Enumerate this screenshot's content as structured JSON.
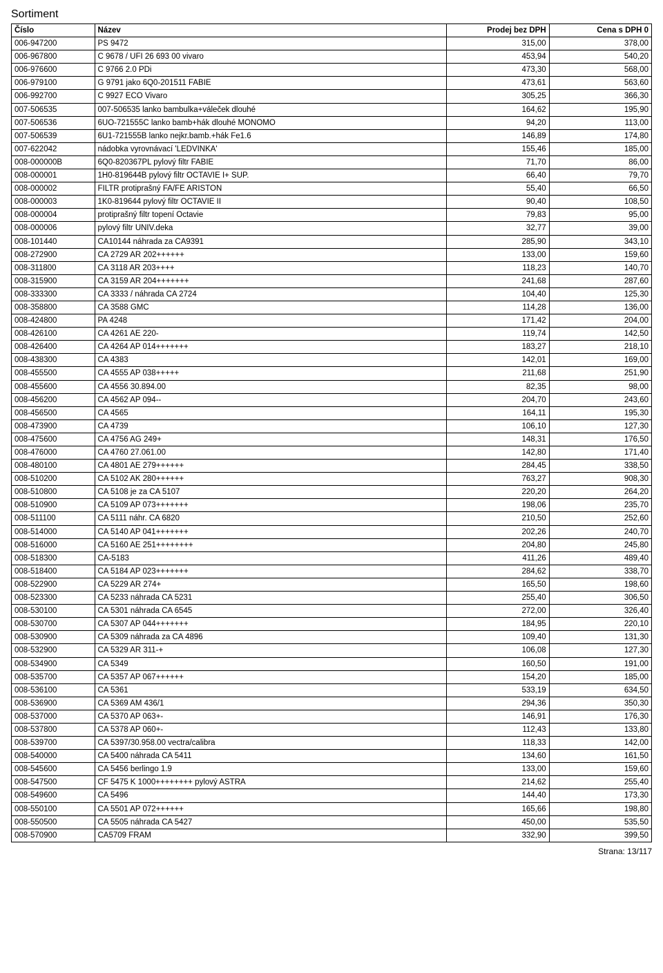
{
  "title": "Sortiment",
  "columns": [
    "Číslo",
    "Název",
    "Prodej bez DPH",
    "Cena s DPH 0"
  ],
  "footer": "Strana: 13/117",
  "rows": [
    [
      "006-947200",
      "PS 9472",
      "315,00",
      "378,00"
    ],
    [
      "006-967800",
      "C 9678 / UFI 26 693 00 vivaro",
      "453,94",
      "540,20"
    ],
    [
      "006-976600",
      "C 9766 2.0 PDi",
      "473,30",
      "568,00"
    ],
    [
      "006-979100",
      "G 9791 jako 6Q0-201511 FABIE",
      "473,61",
      "563,60"
    ],
    [
      "006-992700",
      "C 9927 ECO Vivaro",
      "305,25",
      "366,30"
    ],
    [
      "007-506535",
      "007-506535 lanko bambulka+váleček dlouhé",
      "164,62",
      "195,90"
    ],
    [
      "007-506536",
      "6UO-721555C lanko bamb+hák dlouhé MONOMO",
      "94,20",
      "113,00"
    ],
    [
      "007-506539",
      "6U1-721555B lanko nejkr.bamb.+hák Fe1.6",
      "146,89",
      "174,80"
    ],
    [
      "007-622042",
      "nádobka vyrovnávací  'LEDVINKA'",
      "155,46",
      "185,00"
    ],
    [
      "008-000000B",
      "6Q0-820367PL pylový filtr FABIE",
      "71,70",
      "86,00"
    ],
    [
      "008-000001",
      "1H0-819644B pylový filtr OCTAVIE I+ SUP.",
      "66,40",
      "79,70"
    ],
    [
      "008-000002",
      "FILTR protiprašný FA/FE ARISTON",
      "55,40",
      "66,50"
    ],
    [
      "008-000003",
      "1K0-819644 pylový filtr OCTAVIE II",
      "90,40",
      "108,50"
    ],
    [
      "008-000004",
      "protiprašný filtr topení Octavie",
      "79,83",
      "95,00"
    ],
    [
      "008-000006",
      "pylový filtr UNIV.deka",
      "32,77",
      "39,00"
    ],
    [
      "008-101440",
      "CA10144 náhrada za CA9391",
      "285,90",
      "343,10"
    ],
    [
      "008-272900",
      "CA 2729   AR 202++++++",
      "133,00",
      "159,60"
    ],
    [
      "008-311800",
      "CA 3118   AR 203++++",
      "118,23",
      "140,70"
    ],
    [
      "008-315900",
      "CA 3159   AR 204+++++++",
      "241,68",
      "287,60"
    ],
    [
      "008-333300",
      "CA 3333   / náhrada CA 2724",
      "104,40",
      "125,30"
    ],
    [
      "008-358800",
      "CA 3588     GMC",
      "114,28",
      "136,00"
    ],
    [
      "008-424800",
      "PA 4248",
      "171,42",
      "204,00"
    ],
    [
      "008-426100",
      "CA 4261   AE 220-",
      "119,74",
      "142,50"
    ],
    [
      "008-426400",
      "CA 4264   AP 014+++++++",
      "183,27",
      "218,10"
    ],
    [
      "008-438300",
      "CA 4383",
      "142,01",
      "169,00"
    ],
    [
      "008-455500",
      "CA 4555   AP 038+++++",
      "211,68",
      "251,90"
    ],
    [
      "008-455600",
      "CA 4556   30.894.00",
      "82,35",
      "98,00"
    ],
    [
      "008-456200",
      "CA 4562   AP 094--",
      "204,70",
      "243,60"
    ],
    [
      "008-456500",
      "CA 4565",
      "164,11",
      "195,30"
    ],
    [
      "008-473900",
      "CA 4739",
      "106,10",
      "127,30"
    ],
    [
      "008-475600",
      "CA 4756   AG 249+",
      "148,31",
      "176,50"
    ],
    [
      "008-476000",
      "CA 4760   27.061.00",
      "142,80",
      "171,40"
    ],
    [
      "008-480100",
      "CA 4801   AE 279++++++",
      "284,45",
      "338,50"
    ],
    [
      "008-510200",
      "CA 5102   AK 280++++++",
      "763,27",
      "908,30"
    ],
    [
      "008-510800",
      "CA 5108 je za CA 5107",
      "220,20",
      "264,20"
    ],
    [
      "008-510900",
      "CA 5109   AP 073+++++++",
      "198,06",
      "235,70"
    ],
    [
      "008-511100",
      "CA 5111 náhr. CA 6820",
      "210,50",
      "252,60"
    ],
    [
      "008-514000",
      "CA 5140   AP 041+++++++",
      "202,26",
      "240,70"
    ],
    [
      "008-516000",
      "CA 5160   AE 251++++++++",
      "204,80",
      "245,80"
    ],
    [
      "008-518300",
      "CA-5183",
      "411,26",
      "489,40"
    ],
    [
      "008-518400",
      "CA 5184   AP 023+++++++",
      "284,62",
      "338,70"
    ],
    [
      "008-522900",
      "CA 5229   AR 274+",
      "165,50",
      "198,60"
    ],
    [
      "008-523300",
      "CA 5233   náhrada CA 5231",
      "255,40",
      "306,50"
    ],
    [
      "008-530100",
      "CA 5301 náhrada CA 6545",
      "272,00",
      "326,40"
    ],
    [
      "008-530700",
      "CA 5307   AP 044+++++++",
      "184,95",
      "220,10"
    ],
    [
      "008-530900",
      "CA 5309   náhrada za CA 4896",
      "109,40",
      "131,30"
    ],
    [
      "008-532900",
      "CA 5329   AR 311-+",
      "106,08",
      "127,30"
    ],
    [
      "008-534900",
      "CA 5349",
      "160,50",
      "191,00"
    ],
    [
      "008-535700",
      "CA 5357    AP 067++++++",
      "154,20",
      "185,00"
    ],
    [
      "008-536100",
      "CA 5361",
      "533,19",
      "634,50"
    ],
    [
      "008-536900",
      "CA 5369   AM 436/1",
      "294,36",
      "350,30"
    ],
    [
      "008-537000",
      "CA 5370   AP 063+-",
      "146,91",
      "176,30"
    ],
    [
      "008-537800",
      "CA 5378   AP 060+-",
      "112,43",
      "133,80"
    ],
    [
      "008-539700",
      "CA 5397/30.958.00 vectra/calibra",
      "118,33",
      "142,00"
    ],
    [
      "008-540000",
      "CA 5400 náhrada CA 5411",
      "134,60",
      "161,50"
    ],
    [
      "008-545600",
      "CA 5456   berlingo 1.9",
      "133,00",
      "159,60"
    ],
    [
      "008-547500",
      "CF 5475   K 1000++++++++ pylový ASTRA",
      "214,62",
      "255,40"
    ],
    [
      "008-549600",
      "CA 5496",
      "144,40",
      "173,30"
    ],
    [
      "008-550100",
      "CA 5501   AP 072++++++",
      "165,66",
      "198,80"
    ],
    [
      "008-550500",
      "CA 5505 náhrada CA 5427",
      "450,00",
      "535,50"
    ],
    [
      "008-570900",
      "CA5709 FRAM",
      "332,90",
      "399,50"
    ]
  ]
}
